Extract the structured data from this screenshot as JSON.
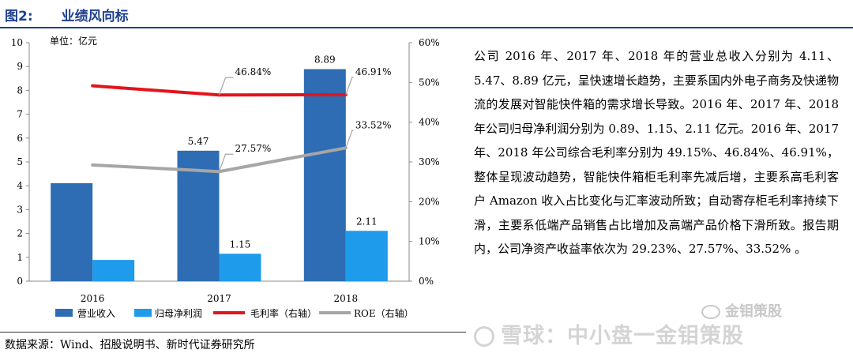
{
  "figure": {
    "label": "图2:",
    "title": "业绩风向标"
  },
  "chart_data": {
    "type": "bar+line",
    "unit_label": "单位：亿元",
    "categories": [
      "2016",
      "2017",
      "2018"
    ],
    "left_axis": {
      "min": 0,
      "max": 10,
      "step": 1,
      "ticks": [
        "0",
        "1",
        "2",
        "3",
        "4",
        "5",
        "6",
        "7",
        "8",
        "9",
        "10"
      ]
    },
    "right_axis": {
      "min": 0,
      "max": 60,
      "step": 10,
      "ticks": [
        "0%",
        "10%",
        "20%",
        "30%",
        "40%",
        "50%",
        "60%"
      ]
    },
    "series": [
      {
        "name": "营业收入",
        "kind": "bar",
        "axis": "left",
        "color": "#2e6db4",
        "values": [
          4.11,
          5.47,
          8.89
        ],
        "labels": [
          "",
          "5.47",
          "8.89"
        ]
      },
      {
        "name": "归母净利润",
        "kind": "bar",
        "axis": "left",
        "color": "#1e9bea",
        "values": [
          0.89,
          1.15,
          2.11
        ],
        "labels": [
          "",
          "1.15",
          "2.11"
        ]
      },
      {
        "name": "毛利率（右轴）",
        "kind": "line",
        "axis": "right",
        "color": "#e3141b",
        "values": [
          49.15,
          46.84,
          46.91
        ],
        "labels": [
          "",
          "46.84%",
          "46.91%"
        ]
      },
      {
        "name": "ROE（右轴）",
        "kind": "line",
        "axis": "right",
        "color": "#a6a6a6",
        "values": [
          29.23,
          27.57,
          33.52
        ],
        "labels": [
          "",
          "27.57%",
          "33.52%"
        ]
      }
    ]
  },
  "paragraph": "公司 2016 年、2017 年、2018 年的营业总收入分别为 4.11、5.47、8.89 亿元，呈快速增长趋势，主要系国内外电子商务及快递物流的发展对智能快件箱的需求增长导致。2016 年、2017 年、2018 年公司归母净利润分别为 0.89、1.15、2.11 亿元。2016 年、2017 年、2018 年公司综合毛利率分别为 49.15%、46.84%、46.91%，整体呈现波动趋势，智能快件箱柜毛利率先减后增，主要系高毛利客户 Amazon 收入占比变化与汇率波动所致；自动寄存柜毛利率持续下滑，主要系低端产品销售占比增加及高端产品价格下滑所致。报告期内，公司净资产收益率依次为 29.23%、27.57%、33.52% 。",
  "source": "数据来源：Wind、招股说明书、新时代证券研究所",
  "watermark": {
    "wechat": "金钼策股",
    "xueqiu": "雪球：中小盘一金钼策股"
  }
}
